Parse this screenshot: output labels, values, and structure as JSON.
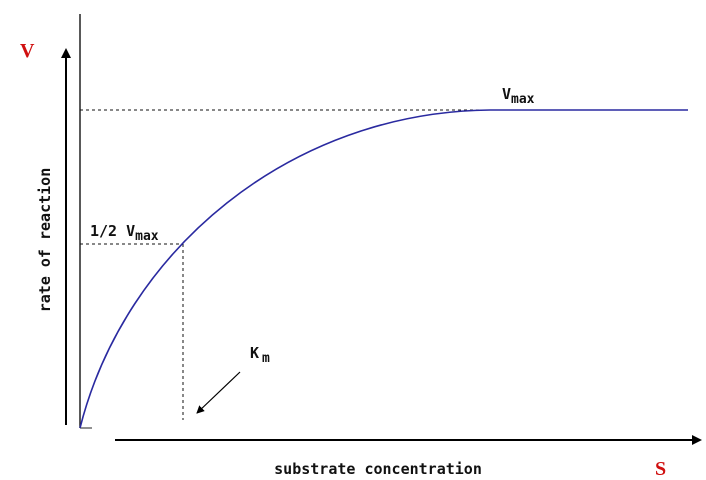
{
  "axes": {
    "y_symbol": "V",
    "y_label": "rate of reaction",
    "x_symbol": "S",
    "x_label": "substrate concentration"
  },
  "annotations": {
    "vmax": {
      "text": "V",
      "sub": "max"
    },
    "half_vmax": {
      "text": "1/2 V",
      "sub": "max"
    },
    "km": {
      "text": "K",
      "sub": "m"
    }
  }
}
